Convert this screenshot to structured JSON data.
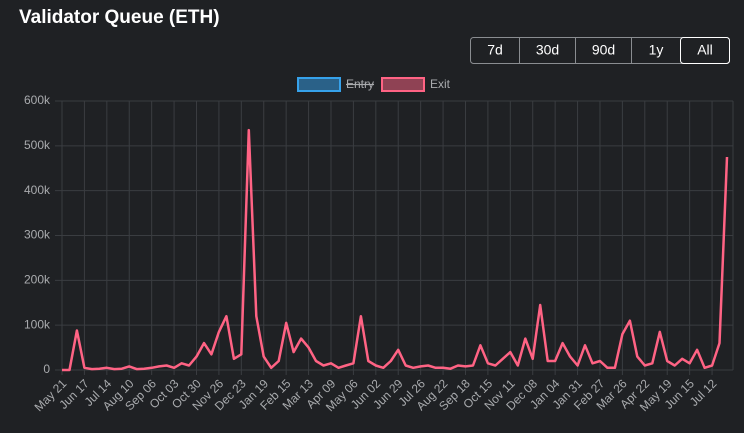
{
  "page": {
    "title": "Validator Queue (ETH)",
    "range_buttons": [
      "7d",
      "30d",
      "90d",
      "1y",
      "All"
    ],
    "active_index": 4
  },
  "chart_data": {
    "type": "line",
    "categories": [
      "May 21",
      null,
      null,
      "Jun 17",
      null,
      null,
      "Jul 14",
      null,
      null,
      "Aug 10",
      null,
      null,
      "Sep 06",
      null,
      null,
      "Oct 03",
      null,
      null,
      "Oct 30",
      null,
      null,
      "Nov 26",
      null,
      null,
      "Dec 23",
      null,
      null,
      "Jan 19",
      null,
      null,
      "Feb 15",
      null,
      null,
      "Mar 13",
      null,
      null,
      "Apr 09",
      null,
      null,
      "May 06",
      null,
      null,
      "Jun 02",
      null,
      null,
      "Jun 29",
      null,
      null,
      "Jul 26",
      null,
      null,
      "Aug 22",
      null,
      null,
      "Sep 18",
      null,
      null,
      "Oct 15",
      null,
      null,
      "Nov 11",
      null,
      null,
      "Dec 08",
      null,
      null,
      "Jan 04",
      null,
      null,
      "Jan 31",
      null,
      null,
      "Feb 27",
      null,
      null,
      "Mar 26",
      null,
      null,
      "Apr 22",
      null,
      null,
      "May 19",
      null,
      null,
      "Jun 15",
      null,
      null,
      "Jul 12",
      null,
      null
    ],
    "series": [
      {
        "name": "Entry",
        "color": "#36a2eb",
        "hidden": true
      },
      {
        "name": "Exit",
        "color": "#ff6384",
        "values": [
          0,
          0,
          88000,
          5000,
          2000,
          3000,
          5000,
          2000,
          3000,
          8000,
          2000,
          3000,
          5000,
          8000,
          10000,
          5000,
          15000,
          10000,
          30000,
          60000,
          35000,
          85000,
          120000,
          25000,
          35000,
          535000,
          120000,
          30000,
          5000,
          20000,
          105000,
          40000,
          70000,
          50000,
          20000,
          10000,
          15000,
          5000,
          10000,
          15000,
          120000,
          20000,
          10000,
          5000,
          20000,
          45000,
          10000,
          5000,
          8000,
          10000,
          5000,
          5000,
          3000,
          10000,
          8000,
          10000,
          55000,
          15000,
          10000,
          25000,
          40000,
          10000,
          70000,
          25000,
          145000,
          20000,
          20000,
          60000,
          30000,
          10000,
          55000,
          15000,
          20000,
          5000,
          5000,
          80000,
          110000,
          30000,
          10000,
          15000,
          85000,
          20000,
          10000,
          25000,
          15000,
          45000,
          5000,
          10000,
          60000,
          475000
        ]
      }
    ],
    "ylim": [
      0,
      600000
    ],
    "yticks": [
      0,
      {
        "value": 100000,
        "label": "100k"
      },
      {
        "value": 200000,
        "label": "200k"
      },
      {
        "value": 300000,
        "label": "300k"
      },
      {
        "value": 400000,
        "label": "400k"
      },
      {
        "value": 500000,
        "label": "500k"
      },
      {
        "value": 600000,
        "label": "600k"
      }
    ],
    "grid": true
  }
}
